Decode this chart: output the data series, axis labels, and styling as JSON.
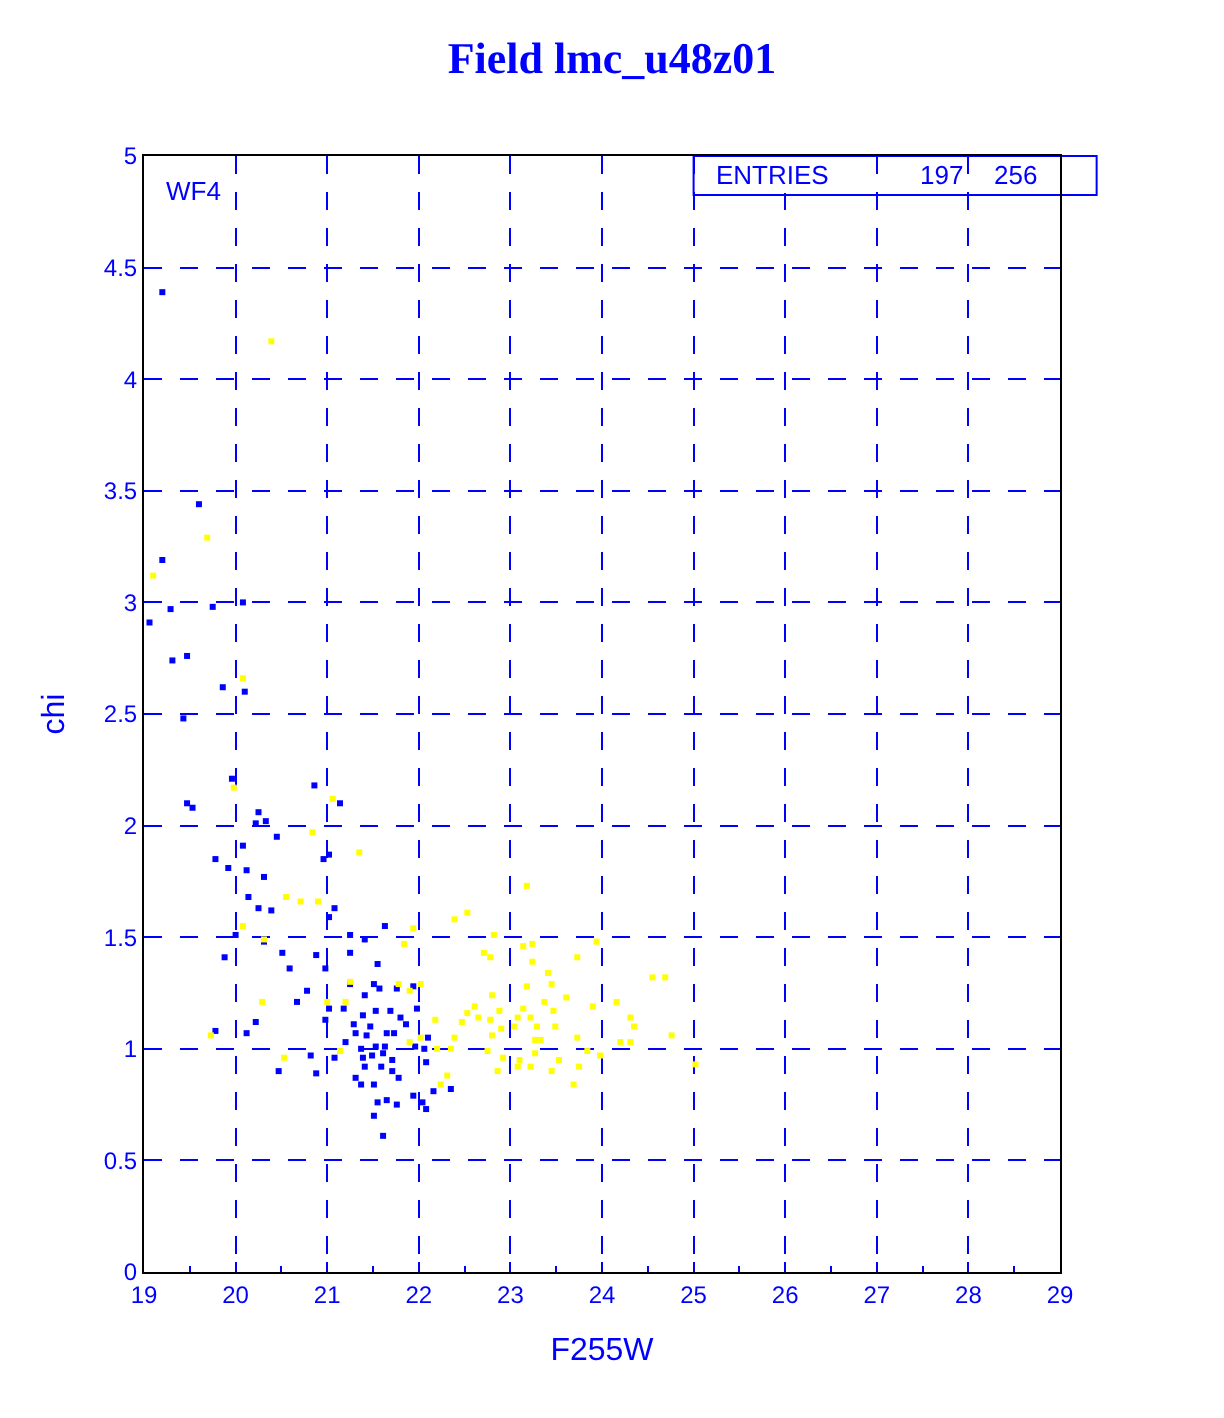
{
  "chart_data": {
    "type": "scatter",
    "title": "Field lmc_u48z01",
    "xlabel": "F255W",
    "ylabel": "chi",
    "annotations": [
      "WF4",
      "ENTRIES",
      "197",
      "256"
    ],
    "xlim": [
      19,
      29
    ],
    "xticks": [
      19,
      20,
      21,
      22,
      23,
      24,
      25,
      26,
      27,
      28,
      29
    ],
    "ylim": [
      0,
      5
    ],
    "yticks": [
      0,
      0.5,
      1,
      1.5,
      2,
      2.5,
      3,
      3.5,
      4,
      4.5,
      5
    ],
    "grid": true,
    "marker": "square",
    "series": [
      {
        "color": "#0000ff",
        "x": [
          19.2,
          19.6,
          19.2,
          19.29,
          19.06,
          19.75,
          20.08,
          19.47,
          19.31,
          19.86,
          20.1,
          19.43,
          19.96,
          20.86,
          19.47,
          19.53,
          21.14,
          20.25,
          20.22,
          20.33,
          20.45,
          20.08,
          19.78,
          19.92,
          20.12,
          20.31,
          20.96,
          21.02,
          20.14,
          20.25,
          20.39,
          21.02,
          21.08,
          20.0,
          20.31,
          21.25,
          21.41,
          21.63,
          19.88,
          20.51,
          20.88,
          21.25,
          21.55,
          20.59,
          20.98,
          20.78,
          21.25,
          21.51,
          21.57,
          21.76,
          20.67,
          21.41,
          21.94,
          21.02,
          21.18,
          21.39,
          21.53,
          21.69,
          21.8,
          21.98,
          20.22,
          20.98,
          21.29,
          21.47,
          21.86,
          20.12,
          21.31,
          21.43,
          21.65,
          21.73,
          19.78,
          21.2,
          21.37,
          21.53,
          21.63,
          21.96,
          22.1,
          22.06,
          20.82,
          21.08,
          21.49,
          21.61,
          21.39,
          21.71,
          22.08,
          20.47,
          20.88,
          21.41,
          21.59,
          21.71,
          21.31,
          21.78,
          21.37,
          21.51,
          22.04,
          22.08,
          22.16,
          22.35,
          21.55,
          21.65,
          21.76,
          21.51,
          21.61,
          21.94
        ],
        "values": [
          4.39,
          3.44,
          3.19,
          2.97,
          2.91,
          2.98,
          3.0,
          2.76,
          2.74,
          2.62,
          2.6,
          2.48,
          2.21,
          2.18,
          2.1,
          2.08,
          2.1,
          2.06,
          2.01,
          2.02,
          1.95,
          1.91,
          1.85,
          1.81,
          1.8,
          1.77,
          1.85,
          1.87,
          1.68,
          1.63,
          1.62,
          1.59,
          1.63,
          1.51,
          1.48,
          1.51,
          1.49,
          1.55,
          1.41,
          1.43,
          1.42,
          1.43,
          1.38,
          1.36,
          1.36,
          1.26,
          1.29,
          1.29,
          1.27,
          1.27,
          1.21,
          1.24,
          1.28,
          1.18,
          1.18,
          1.15,
          1.17,
          1.17,
          1.14,
          1.18,
          1.12,
          1.13,
          1.11,
          1.1,
          1.11,
          1.07,
          1.07,
          1.06,
          1.07,
          1.07,
          1.08,
          1.03,
          1.0,
          1.01,
          1.01,
          1.01,
          1.05,
          1.0,
          0.97,
          0.96,
          0.97,
          0.98,
          0.96,
          0.95,
          0.94,
          0.9,
          0.89,
          0.92,
          0.92,
          0.9,
          0.87,
          0.87,
          0.84,
          0.84,
          0.76,
          0.73,
          0.81,
          0.82,
          0.76,
          0.77,
          0.75,
          0.7,
          0.61,
          0.79
        ]
      },
      {
        "color": "#ffff00",
        "x": [
          20.39,
          19.69,
          19.1,
          20.08,
          19.98,
          21.06,
          20.84,
          21.35,
          20.55,
          20.71,
          20.9,
          20.08,
          20.31,
          20.29,
          19.73,
          20.53,
          23.18,
          22.53,
          22.39,
          22.82,
          23.24,
          23.94,
          22.71,
          22.78,
          23.73,
          23.14,
          23.24,
          23.41,
          24.55,
          24.69,
          23.45,
          23.18,
          22.8,
          23.37,
          23.61,
          24.16,
          22.61,
          22.88,
          23.14,
          23.47,
          23.9,
          22.53,
          22.65,
          22.78,
          23.08,
          23.22,
          24.31,
          22.18,
          22.47,
          22.9,
          23.04,
          23.29,
          23.49,
          24.35,
          22.39,
          22.8,
          23.27,
          23.33,
          23.73,
          24.2,
          24.31,
          24.76,
          21.9,
          22.02,
          22.2,
          22.35,
          22.75,
          22.92,
          23.1,
          23.27,
          23.53,
          23.84,
          23.98,
          22.86,
          23.08,
          23.22,
          23.45,
          23.75,
          22.31,
          22.24,
          23.69,
          21.94,
          21.84,
          21.78,
          21.9,
          22.02,
          21.25,
          21.2,
          21.0,
          21.14,
          25.02
        ],
        "values": [
          4.17,
          3.29,
          3.12,
          2.66,
          2.17,
          2.12,
          1.97,
          1.88,
          1.68,
          1.66,
          1.66,
          1.55,
          1.49,
          1.21,
          1.06,
          0.96,
          1.73,
          1.61,
          1.58,
          1.51,
          1.47,
          1.48,
          1.43,
          1.41,
          1.41,
          1.46,
          1.39,
          1.34,
          1.32,
          1.32,
          1.29,
          1.28,
          1.24,
          1.21,
          1.23,
          1.21,
          1.19,
          1.17,
          1.18,
          1.17,
          1.19,
          1.16,
          1.14,
          1.13,
          1.14,
          1.14,
          1.14,
          1.13,
          1.12,
          1.09,
          1.1,
          1.1,
          1.1,
          1.1,
          1.05,
          1.06,
          1.04,
          1.04,
          1.05,
          1.03,
          1.03,
          1.06,
          1.03,
          1.05,
          1.0,
          1.0,
          0.99,
          0.96,
          0.95,
          0.98,
          0.95,
          0.99,
          0.97,
          0.9,
          0.92,
          0.92,
          0.9,
          0.92,
          0.88,
          0.84,
          0.84,
          1.54,
          1.47,
          1.29,
          1.26,
          1.29,
          1.3,
          1.21,
          1.21,
          0.99,
          0.93
        ]
      }
    ]
  }
}
